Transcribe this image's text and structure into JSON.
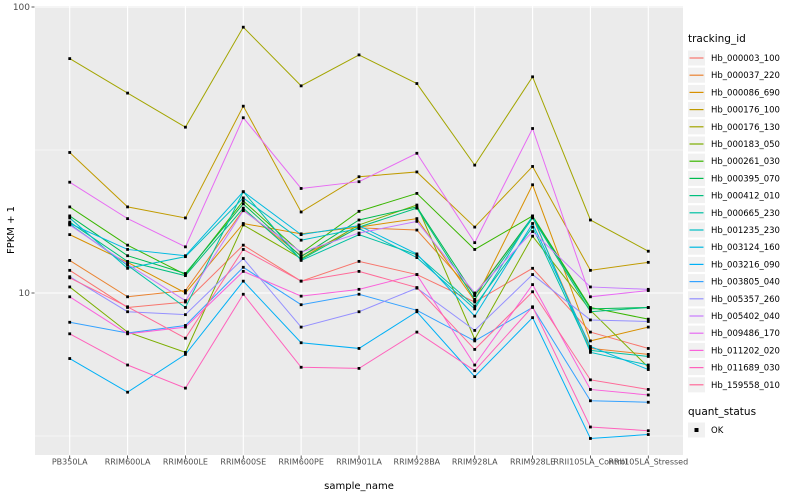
{
  "chart_data": {
    "type": "line",
    "xlabel": "sample_name",
    "ylabel": "FPKM + 1",
    "y_scale": "log10",
    "ylim": [
      2.7,
      101
    ],
    "grid": true,
    "legend_position": "right",
    "panel_bg": "#EBEBEB",
    "grid_color": "#FFFFFF",
    "point_color": "#000000",
    "tick_label_color": "#4d4d4d",
    "y_ticks": [
      {
        "value": 100,
        "label": "100"
      },
      {
        "value": 10,
        "label": "10"
      }
    ],
    "y_minor_gridlines": [
      31.623,
      3.1623
    ],
    "samples": [
      "PB350LA",
      "RRIM600LA",
      "RRIM600LE",
      "RRIM600SE",
      "RRIM600PE",
      "RRIM901LA",
      "RRIM928BA",
      "RRIM928LA",
      "RRIM928LE",
      "RRII105LA_Control",
      "RRII105LA_Stressed"
    ],
    "legend": {
      "tracking_title": "tracking_id",
      "quant_title": "quant_status",
      "quant_values": [
        "OK"
      ]
    },
    "series": [
      {
        "name": "Hb_000003_100",
        "color": "#F8766D",
        "values": [
          12.0,
          8.9,
          9.3,
          14.7,
          11.0,
          12.9,
          11.6,
          9.3,
          12.2,
          7.3,
          6.4
        ]
      },
      {
        "name": "Hb_000037_220",
        "color": "#EA8331",
        "values": [
          13.0,
          9.7,
          10.2,
          19.5,
          13.5,
          16.9,
          16.6,
          9.9,
          18.4,
          6.4,
          6.1
        ]
      },
      {
        "name": "Hb_000086_690",
        "color": "#D89000",
        "values": [
          16.0,
          12.8,
          10.0,
          17.5,
          16.1,
          17.0,
          18.2,
          9.4,
          23.9,
          6.8,
          7.6
        ]
      },
      {
        "name": "Hb_000176_100",
        "color": "#C09B00",
        "values": [
          31.0,
          20.0,
          18.3,
          45.0,
          19.2,
          25.5,
          26.5,
          17.0,
          27.7,
          12.0,
          12.8
        ]
      },
      {
        "name": "Hb_000176_130",
        "color": "#A3A500",
        "values": [
          66.0,
          50.0,
          38.0,
          85.0,
          53.0,
          68.0,
          54.0,
          28.0,
          57.0,
          18.0,
          14.0
        ]
      },
      {
        "name": "Hb_000183_050",
        "color": "#7CAE00",
        "values": [
          10.5,
          7.3,
          6.2,
          17.3,
          13.2,
          17.3,
          20.3,
          6.9,
          15.8,
          8.7,
          5.5
        ]
      },
      {
        "name": "Hb_000261_030",
        "color": "#39B600",
        "values": [
          20.0,
          14.7,
          11.6,
          21.0,
          13.8,
          19.3,
          22.3,
          14.2,
          18.6,
          8.9,
          8.1
        ]
      },
      {
        "name": "Hb_000395_070",
        "color": "#00BB4E",
        "values": [
          18.6,
          13.5,
          11.7,
          20.5,
          13.4,
          18.0,
          20.0,
          9.8,
          18.5,
          8.8,
          8.9
        ]
      },
      {
        "name": "Hb_000412_010",
        "color": "#00BF7D",
        "values": [
          17.7,
          12.9,
          11.5,
          19.8,
          13.1,
          17.0,
          19.8,
          9.5,
          18.3,
          8.6,
          8.9
        ]
      },
      {
        "name": "Hb_000665_230",
        "color": "#00C1A3",
        "values": [
          17.4,
          12.5,
          8.9,
          22.6,
          13.0,
          16.0,
          13.6,
          9.0,
          17.0,
          6.3,
          6.0
        ]
      },
      {
        "name": "Hb_001235_230",
        "color": "#00BFC4",
        "values": [
          18.3,
          12.2,
          13.4,
          21.5,
          15.3,
          16.8,
          13.3,
          8.8,
          18.6,
          6.2,
          5.6
        ]
      },
      {
        "name": "Hb_003124_160",
        "color": "#00BAE0",
        "values": [
          17.5,
          14.2,
          13.5,
          22.6,
          16.0,
          17.2,
          13.7,
          8.3,
          17.5,
          6.5,
          5.4
        ]
      },
      {
        "name": "Hb_003216_090",
        "color": "#00B0F6",
        "values": [
          5.9,
          4.5,
          6.1,
          11.0,
          6.7,
          6.4,
          8.6,
          5.1,
          8.2,
          3.1,
          3.2
        ]
      },
      {
        "name": "Hb_003805_040",
        "color": "#35A2FF",
        "values": [
          7.9,
          7.25,
          7.7,
          12.3,
          9.1,
          9.9,
          8.7,
          6.8,
          8.9,
          4.2,
          4.15
        ]
      },
      {
        "name": "Hb_005357_260",
        "color": "#9590FF",
        "values": [
          11.4,
          8.6,
          8.4,
          13.2,
          7.6,
          8.6,
          10.4,
          7.4,
          11.6,
          8.05,
          7.95
        ]
      },
      {
        "name": "Hb_005402_040",
        "color": "#C77CFF",
        "values": [
          17.3,
          12.6,
          9.4,
          19.4,
          13.9,
          16.2,
          17.8,
          10.0,
          16.4,
          10.5,
          10.3
        ]
      },
      {
        "name": "Hb_009486_170",
        "color": "#E76BF3",
        "values": [
          24.4,
          18.2,
          14.5,
          41.0,
          23.2,
          24.5,
          30.8,
          15.0,
          37.6,
          9.7,
          10.2
        ]
      },
      {
        "name": "Hb_011202_020",
        "color": "#FA62DB",
        "values": [
          9.7,
          7.2,
          7.6,
          11.9,
          9.75,
          10.3,
          11.6,
          5.6,
          10.7,
          4.6,
          4.4
        ]
      },
      {
        "name": "Hb_011689_030",
        "color": "#FF62BC",
        "values": [
          7.2,
          5.6,
          4.65,
          9.9,
          5.5,
          5.45,
          7.3,
          5.35,
          8.95,
          3.4,
          3.3
        ]
      },
      {
        "name": "Hb_159558_010",
        "color": "#FF6A98",
        "values": [
          11.3,
          8.95,
          6.95,
          14.2,
          11.0,
          11.9,
          10.45,
          6.35,
          10.1,
          4.97,
          4.6
        ]
      }
    ]
  }
}
